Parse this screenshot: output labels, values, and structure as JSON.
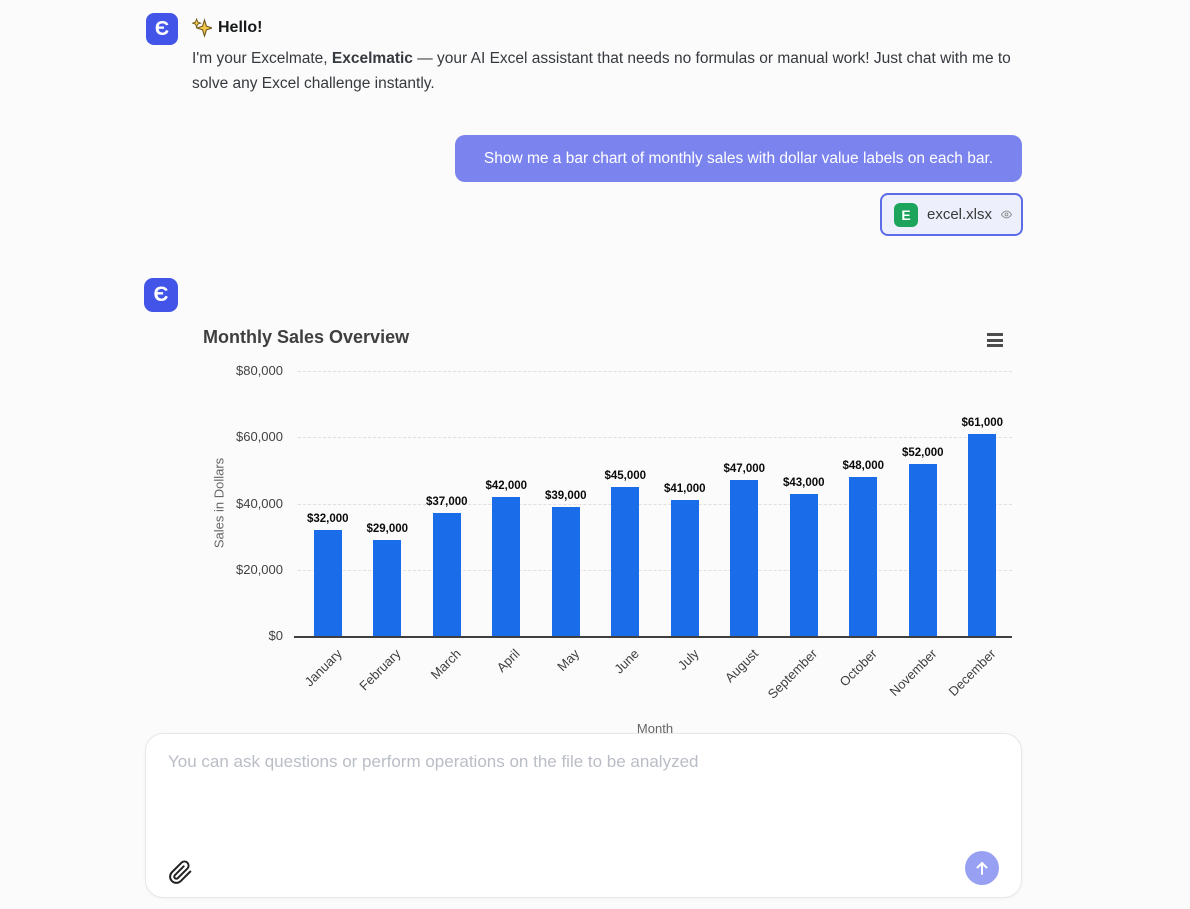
{
  "brand": {
    "avatar_letter": "Є",
    "avatar_color": "#4355e8"
  },
  "greeting": {
    "icon": "sparkles-icon",
    "title": "Hello!",
    "body_pre": "I'm your Excelmate, ",
    "body_bold": "Excelmatic",
    "body_post": " — your AI Excel assistant that needs no formulas or manual work! Just chat with me to solve any Excel challenge instantly."
  },
  "user_message": {
    "text": "Show me a bar chart of monthly sales with dollar value labels on each bar."
  },
  "attachment": {
    "filename": "excel.xlsx",
    "file_icon": "spreadsheet-icon",
    "file_icon_letter": "E",
    "action_icon": "eye-icon"
  },
  "chart_data": {
    "type": "bar",
    "title": "Monthly Sales Overview",
    "xlabel": "Month",
    "ylabel": "Sales in Dollars",
    "categories": [
      "January",
      "February",
      "March",
      "April",
      "May",
      "June",
      "July",
      "August",
      "September",
      "October",
      "November",
      "December"
    ],
    "values": [
      32000,
      29000,
      37000,
      42000,
      39000,
      45000,
      41000,
      47000,
      43000,
      48000,
      52000,
      61000
    ],
    "data_labels": [
      "$32,000",
      "$29,000",
      "$37,000",
      "$42,000",
      "$39,000",
      "$45,000",
      "$41,000",
      "$47,000",
      "$43,000",
      "$48,000",
      "$52,000",
      "$61,000"
    ],
    "ylim": [
      0,
      80000
    ],
    "yticks": [
      {
        "value": 0,
        "label": "$0"
      },
      {
        "value": 20000,
        "label": "$20,000"
      },
      {
        "value": 40000,
        "label": "$40,000"
      },
      {
        "value": 60000,
        "label": "$60,000"
      },
      {
        "value": 80000,
        "label": "$80,000"
      }
    ],
    "grid": true,
    "legend": false,
    "bar_color": "#1b6ce9",
    "menu_icon": "hamburger-menu-icon"
  },
  "composer": {
    "placeholder": "You can ask questions or perform operations on the file to be analyzed",
    "attach_icon": "paperclip-icon",
    "send_icon": "arrow-up-icon"
  },
  "colors": {
    "page_background": "#fafbfa",
    "user_bubble": "#7b84ee",
    "user_bubble_text": "#ffffff",
    "attachment_background": "#edf0fc",
    "attachment_border": "#5c6ce6",
    "sheet_icon_green": "#1ca45c",
    "bar_blue": "#1b6ce9",
    "send_button": "#97a0f2"
  }
}
